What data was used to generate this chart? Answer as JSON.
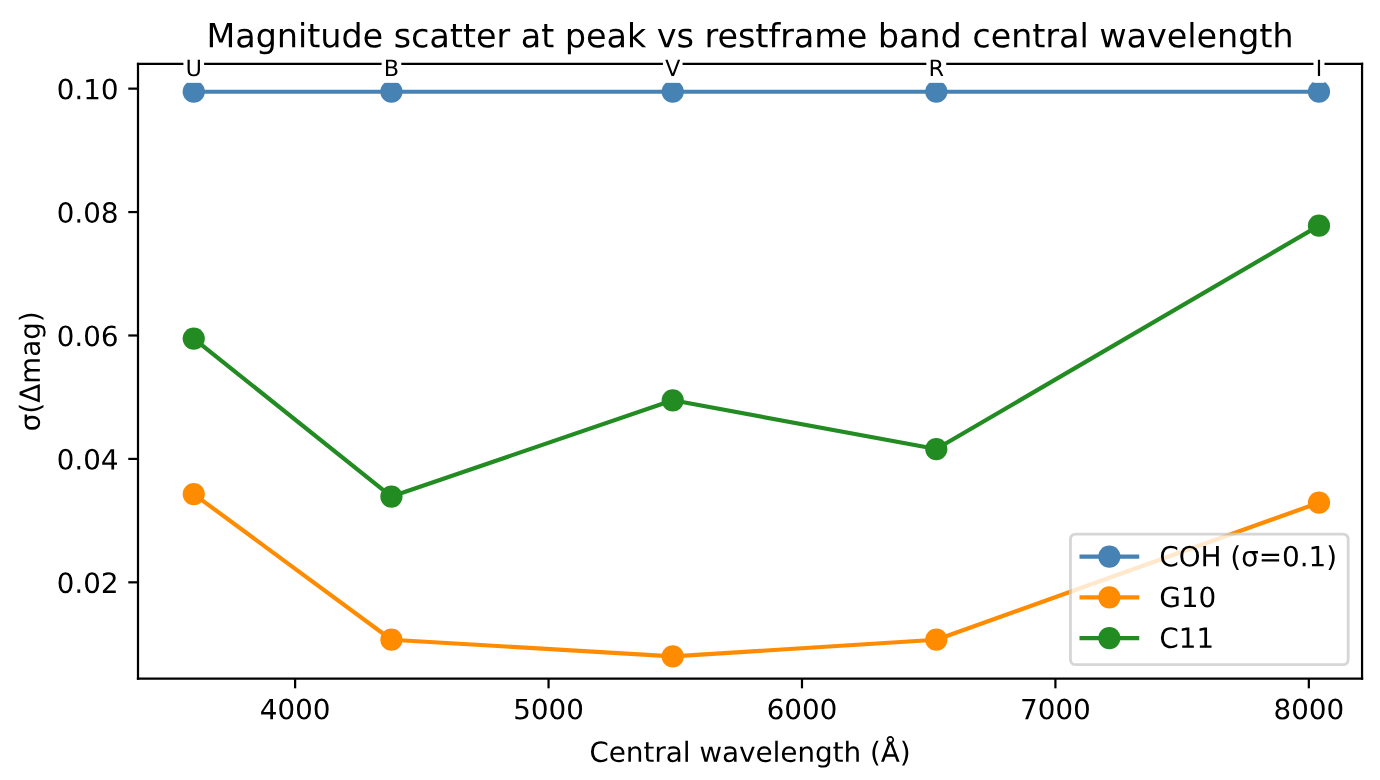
{
  "chart_data": {
    "type": "line",
    "title": "Magnitude scatter at peak vs restframe band central wavelength",
    "xlabel": "Central wavelength (Å)",
    "ylabel": "σ(Δmag)",
    "x": [
      3600,
      4380,
      5490,
      6530,
      8040
    ],
    "series": [
      {
        "name": "COH (σ=0.1)",
        "color": "#4682b4",
        "values": [
          0.0995,
          0.0995,
          0.0995,
          0.0995,
          0.0995
        ]
      },
      {
        "name": "G10",
        "color": "#ff8c00",
        "values": [
          0.0343,
          0.0107,
          0.008,
          0.0107,
          0.0329
        ]
      },
      {
        "name": "C11",
        "color": "#228b22",
        "values": [
          0.0595,
          0.0339,
          0.0495,
          0.0416,
          0.0778
        ]
      }
    ],
    "annotations": [
      {
        "text": "U",
        "x": 3600,
        "y": 0.0995
      },
      {
        "text": "B",
        "x": 4380,
        "y": 0.0995
      },
      {
        "text": "V",
        "x": 5490,
        "y": 0.0995
      },
      {
        "text": "R",
        "x": 6530,
        "y": 0.0995
      },
      {
        "text": "I",
        "x": 8040,
        "y": 0.0995
      }
    ],
    "xlim": [
      3380,
      8210
    ],
    "xticks": [
      4000,
      5000,
      6000,
      7000,
      8000
    ],
    "ylim": [
      0.0044,
      0.104
    ],
    "yticks": [
      {
        "value": 0.02,
        "label": "0.02"
      },
      {
        "value": 0.04,
        "label": "0.04"
      },
      {
        "value": 0.06,
        "label": "0.06"
      },
      {
        "value": 0.08,
        "label": "0.08"
      },
      {
        "value": 0.1,
        "label": "0.10"
      }
    ],
    "legend": "bottom right",
    "marker": "circle",
    "line_style": "solid",
    "grid": false
  }
}
